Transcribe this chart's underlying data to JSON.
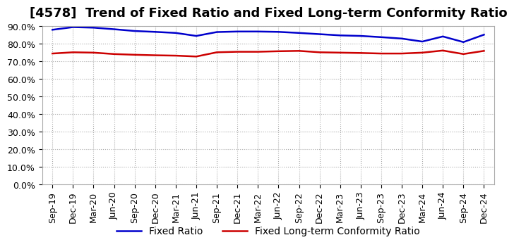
{
  "title": "[4578]  Trend of Fixed Ratio and Fixed Long-term Conformity Ratio",
  "labels": [
    "Sep-19",
    "Dec-19",
    "Mar-20",
    "Jun-20",
    "Sep-20",
    "Dec-20",
    "Mar-21",
    "Jun-21",
    "Sep-21",
    "Dec-21",
    "Mar-22",
    "Jun-22",
    "Sep-22",
    "Dec-22",
    "Mar-23",
    "Jun-23",
    "Sep-23",
    "Dec-23",
    "Mar-24",
    "Jun-24",
    "Sep-24",
    "Dec-24"
  ],
  "fixed_ratio": [
    88.0,
    89.5,
    89.2,
    88.3,
    87.3,
    86.8,
    86.2,
    84.5,
    86.7,
    87.0,
    87.0,
    86.8,
    86.2,
    85.5,
    84.8,
    84.5,
    83.8,
    83.0,
    81.3,
    84.2,
    81.0,
    85.2
  ],
  "fixed_lt_ratio": [
    74.5,
    75.2,
    75.0,
    74.2,
    73.8,
    73.5,
    73.3,
    72.8,
    75.2,
    75.5,
    75.5,
    75.8,
    76.0,
    75.2,
    75.0,
    74.8,
    74.5,
    74.5,
    75.0,
    76.2,
    74.2,
    76.0
  ],
  "fixed_ratio_color": "#0000CC",
  "fixed_lt_ratio_color": "#CC0000",
  "background_color": "#ffffff",
  "plot_bg_color": "#ffffff",
  "ylim": [
    0.0,
    90.0
  ],
  "yticks": [
    0.0,
    10.0,
    20.0,
    30.0,
    40.0,
    50.0,
    60.0,
    70.0,
    80.0,
    90.0
  ],
  "legend_fixed_ratio": "Fixed Ratio",
  "legend_fixed_lt_ratio": "Fixed Long-term Conformity Ratio",
  "grid_color": "#aaaaaa",
  "title_fontsize": 13,
  "axis_fontsize": 9,
  "legend_fontsize": 10
}
